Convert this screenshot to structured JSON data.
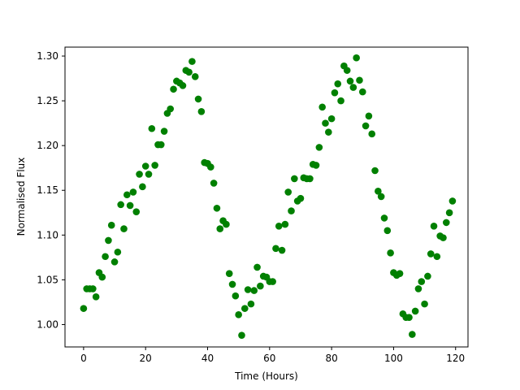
{
  "chart_data": {
    "type": "scatter",
    "title": "",
    "xlabel": "Time (Hours)",
    "ylabel": "Normalised Flux",
    "xlim": [
      -6,
      124
    ],
    "ylim": [
      0.975,
      1.31
    ],
    "xticks": [
      0,
      20,
      40,
      60,
      80,
      100,
      120
    ],
    "yticks": [
      1.0,
      1.05,
      1.1,
      1.15,
      1.2,
      1.25,
      1.3
    ],
    "ytick_labels": [
      "1.00",
      "1.05",
      "1.10",
      "1.15",
      "1.20",
      "1.25",
      "1.30"
    ],
    "grid": false,
    "legend": "none",
    "marker_color": "#008000",
    "series": [
      {
        "x": [
          0,
          1,
          2,
          3,
          4,
          5,
          6,
          7,
          8,
          9,
          10,
          11,
          12,
          13,
          14,
          15,
          16,
          17,
          18,
          19,
          20,
          21,
          22,
          23,
          24,
          25,
          26,
          27,
          28,
          29,
          30,
          31,
          32,
          33,
          34,
          35,
          36,
          37,
          38,
          39,
          40,
          41,
          42,
          43,
          44,
          45,
          46,
          47,
          48,
          49,
          50,
          51,
          52,
          53,
          54,
          55,
          56,
          57,
          58,
          59,
          60,
          61,
          62,
          63,
          64,
          65,
          66,
          67,
          68,
          69,
          70,
          71,
          72,
          73,
          74,
          75,
          76,
          77,
          78,
          79,
          80,
          81,
          82,
          83,
          84,
          85,
          86,
          87,
          88,
          89,
          90,
          91,
          92,
          93,
          94,
          95,
          96,
          97,
          98,
          99,
          100,
          101,
          102,
          103,
          104,
          105,
          106,
          107,
          108,
          109,
          110,
          111,
          112,
          113,
          114,
          115,
          116,
          117,
          118,
          119
        ],
        "y": [
          1.018,
          1.04,
          1.04,
          1.04,
          1.031,
          1.058,
          1.053,
          1.076,
          1.094,
          1.111,
          1.07,
          1.081,
          1.134,
          1.107,
          1.145,
          1.133,
          1.148,
          1.126,
          1.168,
          1.154,
          1.177,
          1.168,
          1.219,
          1.178,
          1.201,
          1.201,
          1.216,
          1.236,
          1.241,
          1.263,
          1.272,
          1.27,
          1.267,
          1.284,
          1.282,
          1.294,
          1.277,
          1.252,
          1.238,
          1.181,
          1.18,
          1.176,
          1.158,
          1.13,
          1.107,
          1.116,
          1.112,
          1.057,
          1.045,
          1.032,
          1.011,
          0.988,
          1.018,
          1.039,
          1.023,
          1.038,
          1.064,
          1.043,
          1.054,
          1.053,
          1.048,
          1.048,
          1.085,
          1.11,
          1.083,
          1.112,
          1.148,
          1.127,
          1.163,
          1.138,
          1.141,
          1.164,
          1.163,
          1.163,
          1.179,
          1.178,
          1.198,
          1.243,
          1.225,
          1.215,
          1.23,
          1.259,
          1.269,
          1.25,
          1.289,
          1.284,
          1.272,
          1.265,
          1.298,
          1.273,
          1.26,
          1.222,
          1.233,
          1.213,
          1.172,
          1.149,
          1.143,
          1.119,
          1.105,
          1.08,
          1.058,
          1.055,
          1.057,
          1.012,
          1.008,
          1.008,
          0.989,
          1.015,
          1.04,
          1.048,
          1.023,
          1.054,
          1.079,
          1.11,
          1.076,
          1.099,
          1.097,
          1.114,
          1.125,
          1.138
        ]
      }
    ]
  }
}
